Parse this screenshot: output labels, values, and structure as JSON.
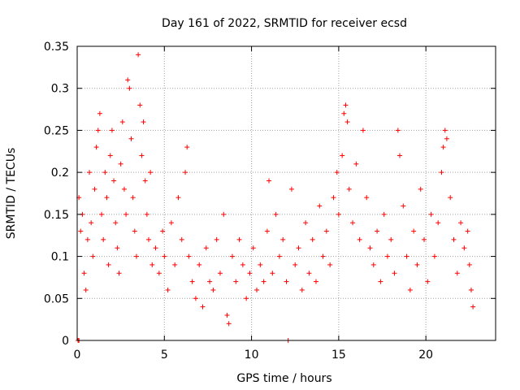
{
  "chart_data": {
    "type": "scatter",
    "title": "Day 161 of 2022, SRMTID for receiver ecsd",
    "xlabel": "GPS time / hours",
    "ylabel": "SRMTID / TECUs",
    "xlim": [
      0,
      24
    ],
    "ylim": [
      0,
      0.35
    ],
    "x_ticks": [
      0,
      5,
      10,
      15,
      20
    ],
    "y_ticks": [
      0,
      0.05,
      0.1,
      0.15,
      0.2,
      0.25,
      0.3,
      0.35
    ],
    "x_tick_labels": [
      "0",
      "5",
      "10",
      "15",
      "20"
    ],
    "y_tick_labels": [
      "0",
      "0.05",
      "0.1",
      "0.15",
      "0.2",
      "0.25",
      "0.3",
      "0.35"
    ],
    "grid": true,
    "marker": "+",
    "color": "#ff0000",
    "series": [
      {
        "name": "SRMTID",
        "points": [
          [
            0.05,
            0.0
          ],
          [
            0.1,
            0.0
          ],
          [
            0.1,
            0.17
          ],
          [
            0.2,
            0.13
          ],
          [
            0.3,
            0.15
          ],
          [
            0.4,
            0.08
          ],
          [
            0.5,
            0.06
          ],
          [
            0.6,
            0.12
          ],
          [
            0.7,
            0.2
          ],
          [
            0.8,
            0.14
          ],
          [
            0.9,
            0.1
          ],
          [
            1.0,
            0.18
          ],
          [
            1.1,
            0.23
          ],
          [
            1.2,
            0.25
          ],
          [
            1.3,
            0.27
          ],
          [
            1.4,
            0.15
          ],
          [
            1.5,
            0.12
          ],
          [
            1.6,
            0.2
          ],
          [
            1.7,
            0.17
          ],
          [
            1.8,
            0.09
          ],
          [
            1.9,
            0.22
          ],
          [
            2.0,
            0.25
          ],
          [
            2.1,
            0.19
          ],
          [
            2.2,
            0.14
          ],
          [
            2.3,
            0.11
          ],
          [
            2.4,
            0.08
          ],
          [
            2.5,
            0.21
          ],
          [
            2.6,
            0.26
          ],
          [
            2.7,
            0.18
          ],
          [
            2.8,
            0.15
          ],
          [
            2.9,
            0.31
          ],
          [
            3.0,
            0.3
          ],
          [
            3.1,
            0.24
          ],
          [
            3.2,
            0.17
          ],
          [
            3.3,
            0.13
          ],
          [
            3.4,
            0.1
          ],
          [
            3.5,
            0.34
          ],
          [
            3.6,
            0.28
          ],
          [
            3.7,
            0.22
          ],
          [
            3.8,
            0.26
          ],
          [
            3.9,
            0.19
          ],
          [
            4.0,
            0.15
          ],
          [
            4.1,
            0.12
          ],
          [
            4.2,
            0.2
          ],
          [
            4.3,
            0.09
          ],
          [
            4.5,
            0.11
          ],
          [
            4.7,
            0.08
          ],
          [
            4.9,
            0.13
          ],
          [
            5.0,
            0.1
          ],
          [
            5.2,
            0.06
          ],
          [
            5.4,
            0.14
          ],
          [
            5.6,
            0.09
          ],
          [
            5.8,
            0.17
          ],
          [
            6.0,
            0.12
          ],
          [
            6.2,
            0.2
          ],
          [
            6.3,
            0.23
          ],
          [
            6.4,
            0.1
          ],
          [
            6.6,
            0.07
          ],
          [
            6.8,
            0.05
          ],
          [
            7.0,
            0.09
          ],
          [
            7.2,
            0.04
          ],
          [
            7.4,
            0.11
          ],
          [
            7.6,
            0.07
          ],
          [
            7.8,
            0.06
          ],
          [
            8.0,
            0.12
          ],
          [
            8.2,
            0.08
          ],
          [
            8.4,
            0.15
          ],
          [
            8.6,
            0.03
          ],
          [
            8.7,
            0.02
          ],
          [
            8.9,
            0.1
          ],
          [
            9.1,
            0.07
          ],
          [
            9.3,
            0.12
          ],
          [
            9.5,
            0.09
          ],
          [
            9.7,
            0.05
          ],
          [
            9.9,
            0.08
          ],
          [
            10.1,
            0.11
          ],
          [
            10.3,
            0.06
          ],
          [
            10.5,
            0.09
          ],
          [
            10.7,
            0.07
          ],
          [
            10.9,
            0.13
          ],
          [
            11.0,
            0.19
          ],
          [
            11.2,
            0.08
          ],
          [
            11.4,
            0.15
          ],
          [
            11.6,
            0.1
          ],
          [
            11.8,
            0.12
          ],
          [
            12.0,
            0.07
          ],
          [
            12.1,
            0.0
          ],
          [
            12.3,
            0.18
          ],
          [
            12.5,
            0.09
          ],
          [
            12.7,
            0.11
          ],
          [
            12.9,
            0.06
          ],
          [
            13.1,
            0.14
          ],
          [
            13.3,
            0.08
          ],
          [
            13.5,
            0.12
          ],
          [
            13.7,
            0.07
          ],
          [
            13.9,
            0.16
          ],
          [
            14.1,
            0.1
          ],
          [
            14.3,
            0.13
          ],
          [
            14.5,
            0.09
          ],
          [
            14.7,
            0.17
          ],
          [
            14.9,
            0.2
          ],
          [
            15.0,
            0.15
          ],
          [
            15.2,
            0.22
          ],
          [
            15.3,
            0.27
          ],
          [
            15.4,
            0.28
          ],
          [
            15.5,
            0.26
          ],
          [
            15.6,
            0.18
          ],
          [
            15.8,
            0.14
          ],
          [
            16.0,
            0.21
          ],
          [
            16.2,
            0.12
          ],
          [
            16.4,
            0.25
          ],
          [
            16.6,
            0.17
          ],
          [
            16.8,
            0.11
          ],
          [
            17.0,
            0.09
          ],
          [
            17.2,
            0.13
          ],
          [
            17.4,
            0.07
          ],
          [
            17.6,
            0.15
          ],
          [
            17.8,
            0.1
          ],
          [
            18.0,
            0.12
          ],
          [
            18.2,
            0.08
          ],
          [
            18.4,
            0.25
          ],
          [
            18.5,
            0.22
          ],
          [
            18.7,
            0.16
          ],
          [
            18.9,
            0.1
          ],
          [
            19.1,
            0.06
          ],
          [
            19.3,
            0.13
          ],
          [
            19.5,
            0.09
          ],
          [
            19.7,
            0.18
          ],
          [
            19.9,
            0.12
          ],
          [
            20.1,
            0.07
          ],
          [
            20.3,
            0.15
          ],
          [
            20.5,
            0.1
          ],
          [
            20.7,
            0.14
          ],
          [
            20.9,
            0.2
          ],
          [
            21.0,
            0.23
          ],
          [
            21.1,
            0.25
          ],
          [
            21.2,
            0.24
          ],
          [
            21.4,
            0.17
          ],
          [
            21.6,
            0.12
          ],
          [
            21.8,
            0.08
          ],
          [
            22.0,
            0.14
          ],
          [
            22.2,
            0.11
          ],
          [
            22.4,
            0.13
          ],
          [
            22.5,
            0.09
          ],
          [
            22.6,
            0.06
          ],
          [
            22.7,
            0.04
          ]
        ]
      }
    ]
  }
}
